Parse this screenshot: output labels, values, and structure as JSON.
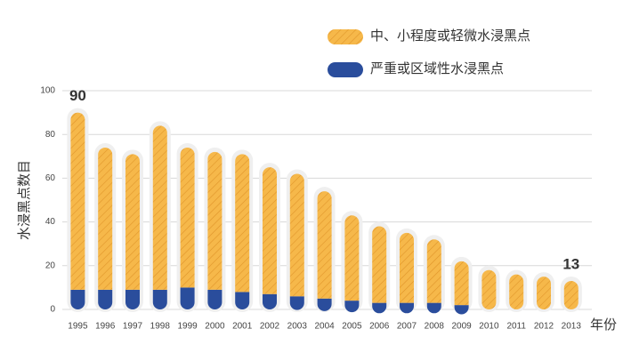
{
  "chart_data": {
    "type": "stacked_bar",
    "y_label": "水浸黑点数目",
    "x_label": "年份",
    "categories": [
      "1995",
      "1996",
      "1997",
      "1998",
      "1999",
      "2000",
      "2001",
      "2002",
      "2003",
      "2004",
      "2005",
      "2006",
      "2007",
      "2008",
      "2009",
      "2010",
      "2011",
      "2012",
      "2013"
    ],
    "series": [
      {
        "name": "严重或区域性水浸黑点",
        "color": "#2a4d9c",
        "values": [
          9,
          9,
          9,
          9,
          10,
          9,
          8,
          7,
          6,
          5,
          4,
          3,
          3,
          3,
          2,
          0,
          0,
          0,
          0
        ]
      },
      {
        "name": "中、小程度或轻微水浸黑点",
        "color": "#f6b84a",
        "hatch": "#e0952a",
        "values": [
          81,
          65,
          62,
          75,
          64,
          63,
          63,
          58,
          56,
          49,
          39,
          35,
          32,
          29,
          20,
          18,
          16,
          15,
          13
        ]
      }
    ],
    "total_labels": [
      "90",
      null,
      null,
      null,
      null,
      null,
      null,
      null,
      null,
      null,
      null,
      null,
      null,
      null,
      null,
      null,
      null,
      null,
      "13"
    ],
    "ylim": [
      0,
      100
    ],
    "yticks": [
      0,
      20,
      40,
      60,
      80,
      100
    ],
    "grid": true,
    "legend": "top-right"
  }
}
